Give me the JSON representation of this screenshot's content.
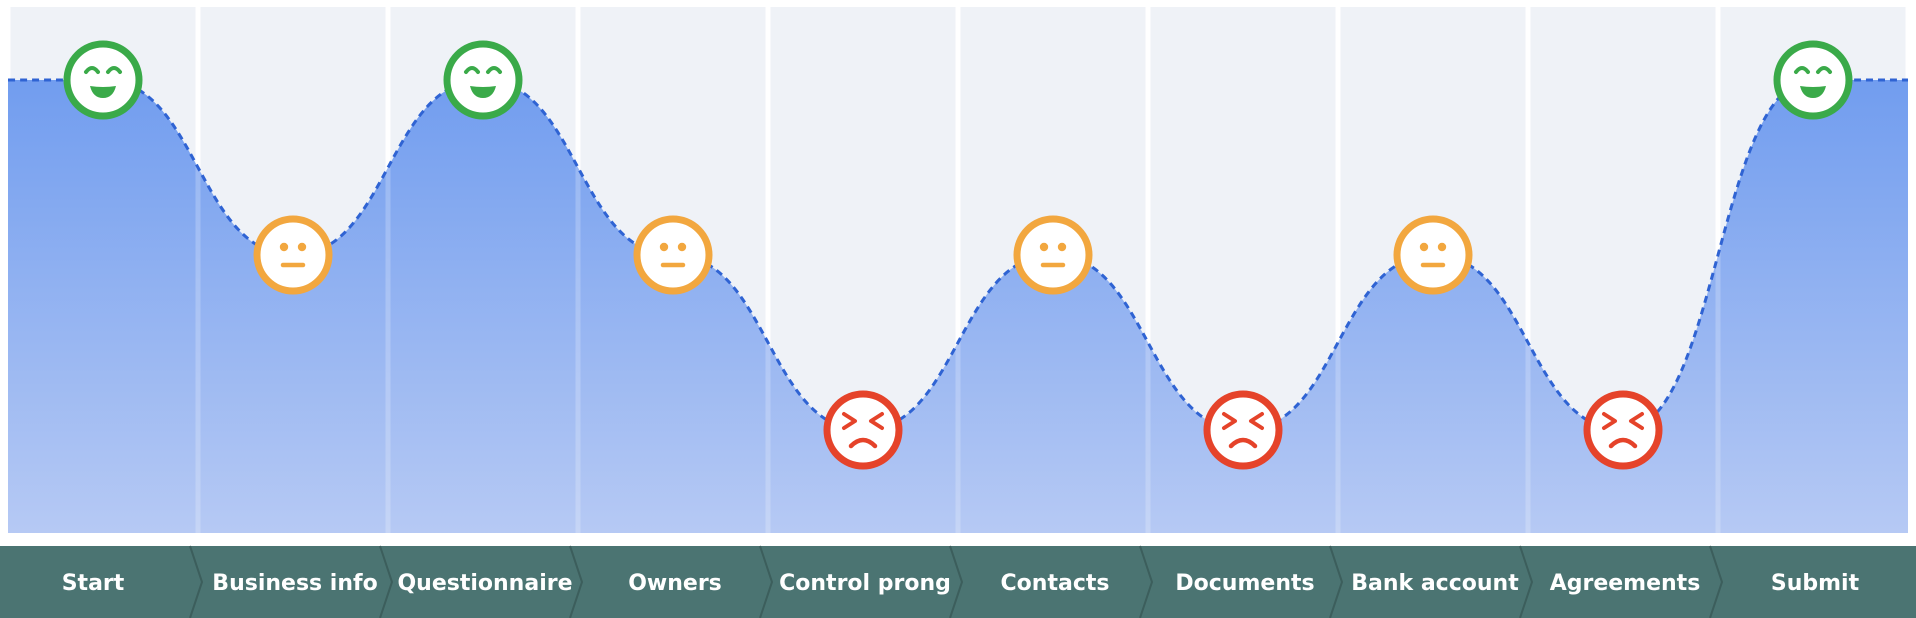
{
  "journey": {
    "colors": {
      "column_bg": "#eff2f7",
      "area_top": "#6595ee",
      "area_bottom": "#b7caf4",
      "curve": "#2f63d3",
      "bar": "#4b7472",
      "bar_edge": "#3c5e5c",
      "happy": "#3aaa49",
      "neutral": "#f2a73f",
      "angry": "#e5432a",
      "face_fill": "#ffffff"
    },
    "steps": [
      {
        "label": "Start",
        "mood": "happy",
        "icon": "happy-face-icon"
      },
      {
        "label": "Business info",
        "mood": "neutral",
        "icon": "neutral-face-icon"
      },
      {
        "label": "Questionnaire",
        "mood": "happy",
        "icon": "happy-face-icon"
      },
      {
        "label": "Owners",
        "mood": "neutral",
        "icon": "neutral-face-icon"
      },
      {
        "label": "Control prong",
        "mood": "angry",
        "icon": "angry-face-icon"
      },
      {
        "label": "Contacts",
        "mood": "neutral",
        "icon": "neutral-face-icon"
      },
      {
        "label": "Documents",
        "mood": "angry",
        "icon": "angry-face-icon"
      },
      {
        "label": "Bank account",
        "mood": "neutral",
        "icon": "neutral-face-icon"
      },
      {
        "label": "Agreements",
        "mood": "angry",
        "icon": "angry-face-icon"
      },
      {
        "label": "Submit",
        "mood": "happy",
        "icon": "happy-face-icon"
      }
    ]
  }
}
